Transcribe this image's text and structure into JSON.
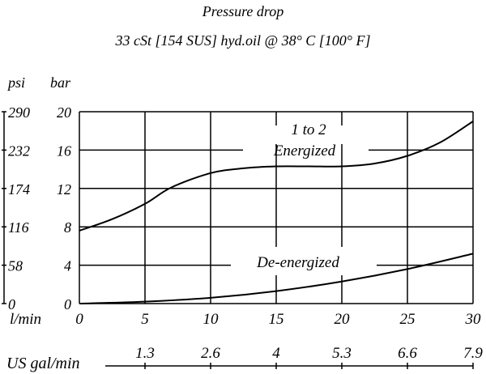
{
  "chart_data": {
    "type": "line",
    "title": "Pressure   drop",
    "subtitle": "33 cSt [154 SUS] hyd.oil @ 38° C [100° F]",
    "xlabel": "l/min",
    "xlabel2": "US gal/min",
    "ylabel_left": "psi",
    "ylabel_right": "bar",
    "xlim": [
      0,
      30
    ],
    "ylim": [
      0,
      20
    ],
    "x_ticks": [
      "0",
      "5",
      "10",
      "15",
      "20",
      "25",
      "30"
    ],
    "x_tick_values": [
      0,
      5,
      10,
      15,
      20,
      25,
      30
    ],
    "gal_ticks": [
      "1.3",
      "2.6",
      "4",
      "5.3",
      "6.6",
      "7.9"
    ],
    "bar_ticks": [
      "0",
      "4",
      "8",
      "12",
      "16",
      "20"
    ],
    "bar_tick_values": [
      0,
      4,
      8,
      12,
      16,
      20
    ],
    "psi_ticks": [
      "0",
      "58",
      "116",
      "174",
      "232",
      "290"
    ],
    "grid": true,
    "series": [
      {
        "name": "1 to 2 Energized",
        "label_line1": "1 to 2",
        "label_line2": "Energized",
        "x": [
          0,
          2.5,
          5,
          7,
          10,
          12.5,
          15,
          17.5,
          20,
          22.5,
          25,
          27.5,
          30
        ],
        "y": [
          7.6,
          8.8,
          10.4,
          12.1,
          13.6,
          14.1,
          14.3,
          14.3,
          14.3,
          14.6,
          15.4,
          16.8,
          19.0
        ]
      },
      {
        "name": "De-energized",
        "label_line1": "De-energized",
        "x": [
          0,
          5,
          10,
          15,
          20,
          25,
          30
        ],
        "y": [
          0,
          0.2,
          0.6,
          1.3,
          2.3,
          3.6,
          5.2
        ]
      }
    ],
    "line_color": "#000000"
  }
}
